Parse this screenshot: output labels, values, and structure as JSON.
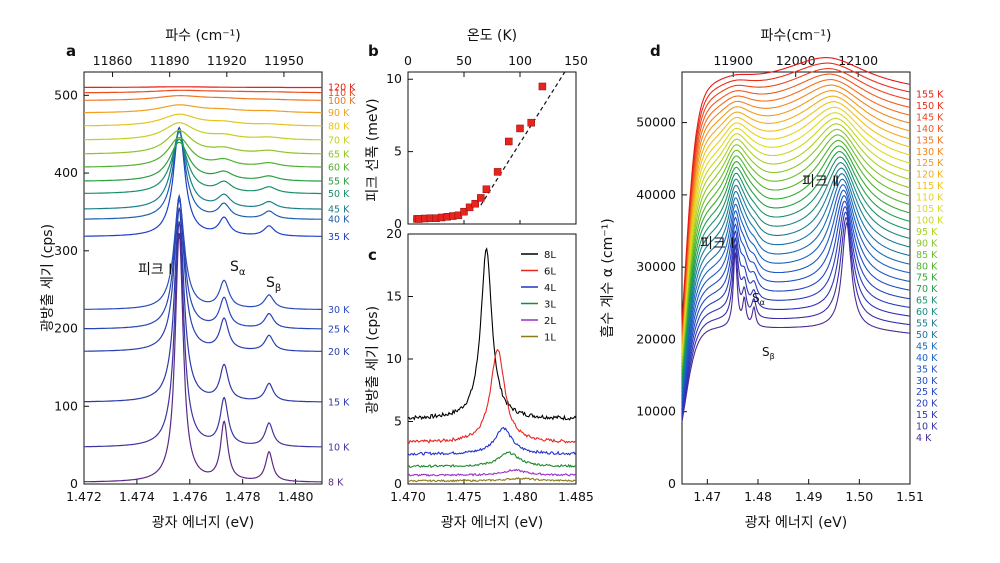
{
  "chart_data": [
    {
      "panel": "a",
      "type": "line",
      "xlabel": "광자 에너지 (eV)",
      "ylabel": "광방출 세기 (cps)",
      "top_xlabel": "파수 (cm⁻¹)",
      "xlim": [
        1.472,
        1.481
      ],
      "ylim": [
        0,
        530
      ],
      "xticks": [
        "1.472",
        "1.474",
        "1.476",
        "1.478",
        "1.480"
      ],
      "yticks": [
        "0",
        "100",
        "200",
        "300",
        "400",
        "500"
      ],
      "top_ticks": [
        "11860",
        "11890",
        "11920",
        "11950"
      ],
      "top_tick_values": [
        11860,
        11890,
        11920,
        11950
      ],
      "peaks": {
        "I": 1.4756,
        "S_alpha": 1.4773,
        "S_beta": 1.479
      },
      "annotations": [
        "피크 Ⅰ",
        "S",
        "α",
        "S",
        "β"
      ],
      "series": [
        {
          "temp": "8 K",
          "baseline": 0,
          "amp": [
            320,
            75,
            38
          ],
          "width": 0.00018,
          "color": "#5b2a86"
        },
        {
          "temp": "10 K",
          "baseline": 45,
          "amp": [
            290,
            60,
            30
          ],
          "width": 0.0002,
          "color": "#3d35a0"
        },
        {
          "temp": "15 K",
          "baseline": 103,
          "amp": [
            250,
            45,
            23
          ],
          "width": 0.00021,
          "color": "#2d3aa8"
        },
        {
          "temp": "20 K",
          "baseline": 168,
          "amp": [
            200,
            40,
            20
          ],
          "width": 0.00022,
          "color": "#2a3fb0"
        },
        {
          "temp": "25 K",
          "baseline": 197,
          "amp": [
            170,
            38,
            19
          ],
          "width": 0.00023,
          "color": "#2645b8"
        },
        {
          "temp": "30 K",
          "baseline": 222,
          "amp": [
            140,
            35,
            18
          ],
          "width": 0.00024,
          "color": "#2a4cbe"
        },
        {
          "temp": "35 K",
          "baseline": 316,
          "amp": [
            140,
            22,
            13
          ],
          "width": 0.00026,
          "color": "#1e40c8"
        },
        {
          "temp": "40 K",
          "baseline": 338,
          "amp": [
            113,
            18,
            10
          ],
          "width": 0.00029,
          "color": "#1e5fb0"
        },
        {
          "temp": "45 K",
          "baseline": 351,
          "amp": [
            100,
            16,
            9
          ],
          "width": 0.00033,
          "color": "#19808a"
        },
        {
          "temp": "50 K",
          "baseline": 371,
          "amp": [
            70,
            13,
            8
          ],
          "width": 0.00038,
          "color": "#1a8f6a"
        },
        {
          "temp": "55 K",
          "baseline": 387,
          "amp": [
            50,
            10,
            6
          ],
          "width": 0.00045,
          "color": "#27a040"
        },
        {
          "temp": "60 K",
          "baseline": 405,
          "amp": [
            38,
            8,
            5
          ],
          "width": 0.00052,
          "color": "#50b030"
        },
        {
          "temp": "65 K",
          "baseline": 422,
          "amp": [
            30,
            6,
            4
          ],
          "width": 0.0006,
          "color": "#8fc428"
        },
        {
          "temp": "70 K",
          "baseline": 440,
          "amp": [
            22,
            5,
            3
          ],
          "width": 0.0007,
          "color": "#c3cf22"
        },
        {
          "temp": "80 K",
          "baseline": 458,
          "amp": [
            15,
            4,
            2
          ],
          "width": 0.00082,
          "color": "#e6c41f"
        },
        {
          "temp": "90 K",
          "baseline": 475,
          "amp": [
            10,
            3,
            2
          ],
          "width": 0.00095,
          "color": "#f0a020"
        },
        {
          "temp": "100 K",
          "baseline": 491,
          "amp": [
            6,
            2,
            1
          ],
          "width": 0.0011,
          "color": "#f07520"
        },
        {
          "temp": "110 K",
          "baseline": 501,
          "amp": [
            3,
            1,
            1
          ],
          "width": 0.0013,
          "color": "#ee4a1e"
        },
        {
          "temp": "120 K",
          "baseline": 508,
          "amp": [
            1,
            0,
            0
          ],
          "width": 0.0015,
          "color": "#e62015"
        }
      ]
    },
    {
      "panel": "b",
      "type": "scatter",
      "xlabel": "",
      "top_xlabel": "온도 (K)",
      "ylabel": "피크 선폭 (meV)",
      "xlim": [
        0,
        150
      ],
      "ylim": [
        0,
        10.5
      ],
      "xticks": [
        "0",
        "50",
        "100",
        "150"
      ],
      "yticks": [
        "0",
        "5",
        "10"
      ],
      "x": [
        8,
        10,
        15,
        20,
        25,
        30,
        35,
        40,
        45,
        50,
        55,
        60,
        65,
        70,
        80,
        90,
        100,
        110,
        120
      ],
      "y": [
        0.35,
        0.35,
        0.38,
        0.4,
        0.4,
        0.45,
        0.5,
        0.55,
        0.6,
        0.85,
        1.15,
        1.4,
        1.8,
        2.4,
        3.6,
        5.7,
        6.6,
        7.0,
        9.5
      ],
      "fit_line": {
        "x": [
          65,
          140
        ],
        "y": [
          1.3,
          10.5
        ]
      }
    },
    {
      "panel": "c",
      "type": "line",
      "xlabel": "광자 에너지 (eV)",
      "ylabel": "광방출 세기 (cps)",
      "xlim": [
        1.47,
        1.485
      ],
      "ylim": [
        0,
        20
      ],
      "xticks": [
        "1.470",
        "1.475",
        "1.480",
        "1.485"
      ],
      "yticks": [
        "0",
        "5",
        "10",
        "15",
        "20"
      ],
      "legend_position": "top-right",
      "series": [
        {
          "name": "8L",
          "color": "#000000",
          "baseline": 5.2,
          "amp": 13.5,
          "center": 1.477,
          "width": 0.0006
        },
        {
          "name": "6L",
          "color": "#e8251f",
          "baseline": 3.3,
          "amp": 7.5,
          "center": 1.478,
          "width": 0.00075
        },
        {
          "name": "4L",
          "color": "#2433c8",
          "baseline": 2.4,
          "amp": 2.1,
          "center": 1.4785,
          "width": 0.0009
        },
        {
          "name": "3L",
          "color": "#1f8a2d",
          "baseline": 1.4,
          "amp": 1.1,
          "center": 1.479,
          "width": 0.0011
        },
        {
          "name": "2L",
          "color": "#9b2fc6",
          "baseline": 0.7,
          "amp": 0.4,
          "center": 1.4795,
          "width": 0.0013
        },
        {
          "name": "1L",
          "color": "#8a7a1e",
          "baseline": 0.25,
          "amp": 0.2,
          "center": 1.48,
          "width": 0.0015
        }
      ]
    },
    {
      "panel": "d",
      "type": "line",
      "xlabel": "광자 에너지 (eV)",
      "ylabel": "흡수 계수 α (cm⁻¹)",
      "top_xlabel": "파수(cm⁻¹)",
      "xlim": [
        1.465,
        1.51
      ],
      "ylim": [
        0,
        57000
      ],
      "xticks": [
        "1.47",
        "1.48",
        "1.49",
        "1.50",
        "1.51"
      ],
      "yticks": [
        "0",
        "10000",
        "20000",
        "30000",
        "40000",
        "50000"
      ],
      "top_ticks": [
        "11900",
        "12000",
        "12100"
      ],
      "top_tick_values": [
        11900,
        12000,
        12100
      ],
      "annotations": [
        "피크 Ⅰ",
        "피크 Ⅱ",
        "S",
        "α",
        "S",
        "β"
      ],
      "temps": [
        "4 K",
        "10 K",
        "15 K",
        "20 K",
        "25 K",
        "30 K",
        "35 K",
        "40 K",
        "45 K",
        "50 K",
        "55 K",
        "60 K",
        "65 K",
        "70 K",
        "75 K",
        "80 K",
        "85 K",
        "90 K",
        "95 K",
        "100 K",
        "105 K",
        "110 K",
        "115 K",
        "120 K",
        "125 K",
        "130 K",
        "135 K",
        "140 K",
        "145 K",
        "150 K",
        "155 K"
      ],
      "temp_colors": [
        "#4b2a95",
        "#3a2ea8",
        "#2c34b6",
        "#2a3cbe",
        "#2446c4",
        "#1e4fca",
        "#1d58c8",
        "#1b62c2",
        "#1a6ab6",
        "#1a75a4",
        "#1a7f92",
        "#1b8980",
        "#1c926c",
        "#22a04a",
        "#35ab34",
        "#4fb52c",
        "#6cbf2a",
        "#8bc828",
        "#a9d026",
        "#c7d822",
        "#dcdc20",
        "#e6d21e",
        "#eec21e",
        "#f0ae1e",
        "#f29a1e",
        "#f2851e",
        "#f2701e",
        "#f05a1e",
        "#ee441c",
        "#ea2e1a",
        "#e41a16"
      ],
      "baseline_first": 21500,
      "baseline_step": 1100,
      "peak_I_center": 1.4755,
      "peak_II_center": 1.4975
    }
  ]
}
